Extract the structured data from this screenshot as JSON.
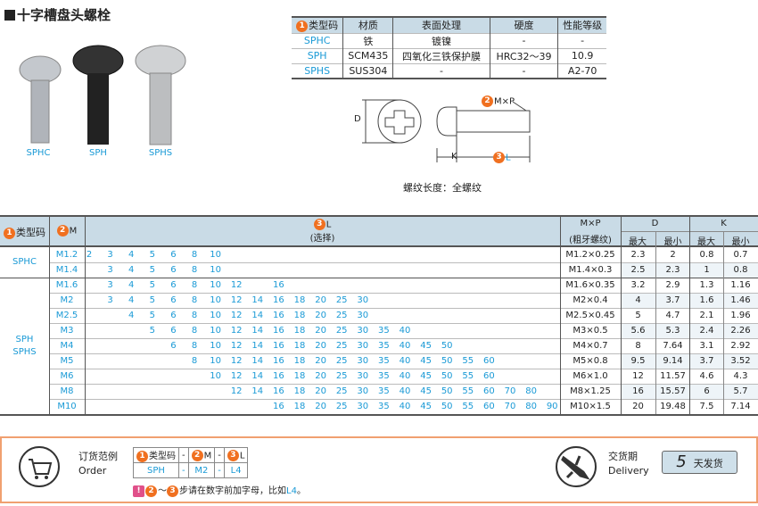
{
  "title": "十字槽盘头螺栓",
  "screws": [
    {
      "label": "SPHC",
      "color": "#b8bcc2"
    },
    {
      "label": "SPH",
      "color": "#222222"
    },
    {
      "label": "SPHS",
      "color": "#c8cacc"
    }
  ],
  "spec_table": {
    "headers": [
      "类型码",
      "材质",
      "表面处理",
      "硬度",
      "性能等级"
    ],
    "rows": [
      [
        "SPHC",
        "铁",
        "镀镍",
        "-",
        "-"
      ],
      [
        "SPH",
        "SCM435",
        "四氧化三铁保护膜",
        "HRC32～39",
        "10.9"
      ],
      [
        "SPHS",
        "SUS304",
        "-",
        "-",
        "A2-70"
      ]
    ]
  },
  "diagram": {
    "mxp_label": "M×P",
    "d_label": "D",
    "k_label": "K",
    "l_label": "L",
    "thread_note": "螺纹长度：全螺纹",
    "num1": "1",
    "num2": "2",
    "num3": "3"
  },
  "main_table": {
    "h_type": "类型码",
    "h_m": "M",
    "h_l": "L",
    "h_l_sub": "(选择)",
    "h_mxp": "M×P",
    "h_mxp_sub": "(粗牙螺纹)",
    "h_d": "D",
    "h_k": "K",
    "h_max": "最大",
    "h_min": "最小",
    "l_columns": [
      2,
      3,
      4,
      5,
      6,
      8,
      10,
      12,
      14,
      16,
      18,
      20,
      25,
      30,
      35,
      40,
      45,
      50,
      55,
      60,
      70,
      80,
      90
    ],
    "groups": [
      {
        "type": [
          "SPHC"
        ],
        "rows": 2
      },
      {
        "type": [
          "SPH",
          "SPHS"
        ],
        "rows": 9
      }
    ],
    "rows": [
      {
        "m": "M1.2",
        "l": [
          2,
          3,
          4,
          5,
          6,
          8,
          10
        ],
        "mxp": "M1.2×0.25",
        "d_max": "2.3",
        "d_min": "2",
        "k_max": "0.8",
        "k_min": "0.7"
      },
      {
        "m": "M1.4",
        "l": [
          3,
          4,
          5,
          6,
          8,
          10
        ],
        "mxp": "M1.4×0.3",
        "d_max": "2.5",
        "d_min": "2.3",
        "k_max": "1",
        "k_min": "0.8"
      },
      {
        "m": "M1.6",
        "l": [
          3,
          4,
          5,
          6,
          8,
          10,
          12,
          16
        ],
        "mxp": "M1.6×0.35",
        "d_max": "3.2",
        "d_min": "2.9",
        "k_max": "1.3",
        "k_min": "1.16"
      },
      {
        "m": "M2",
        "l": [
          3,
          4,
          5,
          6,
          8,
          10,
          12,
          14,
          16,
          18,
          20,
          25,
          30
        ],
        "mxp": "M2×0.4",
        "d_max": "4",
        "d_min": "3.7",
        "k_max": "1.6",
        "k_min": "1.46"
      },
      {
        "m": "M2.5",
        "l": [
          4,
          5,
          6,
          8,
          10,
          12,
          14,
          16,
          18,
          20,
          25,
          30
        ],
        "mxp": "M2.5×0.45",
        "d_max": "5",
        "d_min": "4.7",
        "k_max": "2.1",
        "k_min": "1.96"
      },
      {
        "m": "M3",
        "l": [
          5,
          6,
          8,
          10,
          12,
          14,
          16,
          18,
          20,
          25,
          30,
          35,
          40
        ],
        "mxp": "M3×0.5",
        "d_max": "5.6",
        "d_min": "5.3",
        "k_max": "2.4",
        "k_min": "2.26"
      },
      {
        "m": "M4",
        "l": [
          6,
          8,
          10,
          12,
          14,
          16,
          18,
          20,
          25,
          30,
          35,
          40,
          45,
          50
        ],
        "mxp": "M4×0.7",
        "d_max": "8",
        "d_min": "7.64",
        "k_max": "3.1",
        "k_min": "2.92"
      },
      {
        "m": "M5",
        "l": [
          8,
          10,
          12,
          14,
          16,
          18,
          20,
          25,
          30,
          35,
          40,
          45,
          50,
          55,
          60
        ],
        "mxp": "M5×0.8",
        "d_max": "9.5",
        "d_min": "9.14",
        "k_max": "3.7",
        "k_min": "3.52"
      },
      {
        "m": "M6",
        "l": [
          10,
          12,
          14,
          16,
          18,
          20,
          25,
          30,
          35,
          40,
          45,
          50,
          55,
          60
        ],
        "mxp": "M6×1.0",
        "d_max": "12",
        "d_min": "11.57",
        "k_max": "4.6",
        "k_min": "4.3"
      },
      {
        "m": "M8",
        "l": [
          12,
          14,
          16,
          18,
          20,
          25,
          30,
          35,
          40,
          45,
          50,
          55,
          60,
          70,
          80
        ],
        "mxp": "M8×1.25",
        "d_max": "16",
        "d_min": "15.57",
        "k_max": "6",
        "k_min": "5.7"
      },
      {
        "m": "M10",
        "l": [
          16,
          18,
          20,
          25,
          30,
          35,
          40,
          45,
          50,
          55,
          60,
          70,
          80,
          90
        ],
        "mxp": "M10×1.5",
        "d_max": "20",
        "d_min": "19.48",
        "k_max": "7.5",
        "k_min": "7.14"
      }
    ]
  },
  "order": {
    "label_cn": "订货范例",
    "label_en": "Order",
    "h": [
      "类型码",
      "-",
      "M",
      "-",
      "L"
    ],
    "v": [
      "SPH",
      "-",
      "M2",
      "-",
      "L4"
    ],
    "note_prefix": "～",
    "note": "步请在数字前加字母，比如",
    "note_example": "L4",
    "note_end": "。",
    "delivery_cn": "交货期",
    "delivery_en": "Delivery",
    "days": "5",
    "days_label": "天发货"
  }
}
